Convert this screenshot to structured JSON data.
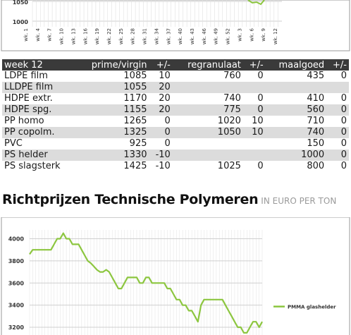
{
  "top_chart": {
    "type": "line",
    "y_tick_labels": [
      "1050",
      "1000"
    ],
    "x_tick_labels": [
      "wk. 1",
      "wk. 4",
      "wk. 7",
      "wk. 10",
      "wk. 13",
      "wk. 16",
      "wk. 19",
      "wk. 22",
      "wk. 25",
      "wk. 28",
      "wk. 31",
      "wk. 34",
      "wk. 37",
      "wk. 40",
      "wk. 43",
      "wk. 46",
      "wk. 49",
      "wk. 52",
      "wk. 3",
      "wk. 6",
      "wk. 9",
      "wk. 12"
    ],
    "series_color": "#8cc63f"
  },
  "table": {
    "headers": [
      "week 12",
      "prime/virgin",
      "+/-",
      "regranulaat",
      "+/-",
      "maalgoed",
      "+/-"
    ],
    "rows": [
      [
        "LDPE film",
        "1085",
        "10",
        "760",
        "0",
        "435",
        "0"
      ],
      [
        "LLDPE film",
        "1055",
        "20",
        "",
        "",
        "",
        ""
      ],
      [
        "HDPE extr.",
        "1170",
        "20",
        "740",
        "0",
        "410",
        "0"
      ],
      [
        "HDPE spg.",
        "1155",
        "20",
        "775",
        "0",
        "560",
        "0"
      ],
      [
        "PP homo",
        "1265",
        "0",
        "1020",
        "10",
        "710",
        "0"
      ],
      [
        "PP copolm.",
        "1325",
        "0",
        "1050",
        "10",
        "740",
        "0"
      ],
      [
        "PVC",
        "925",
        "0",
        "",
        "",
        "150",
        "0"
      ],
      [
        "PS helder",
        "1330",
        "-10",
        "",
        "",
        "1000",
        "0"
      ],
      [
        "PS slagsterk",
        "1425",
        "-10",
        "1025",
        "0",
        "800",
        "0"
      ]
    ]
  },
  "section": {
    "title": "Richtprijzen Technische Polymeren",
    "subtitle": "IN EURO PER TON"
  },
  "chart_data": {
    "type": "line",
    "y_tick_labels": [
      "4000",
      "3800",
      "3600",
      "3400",
      "3200"
    ],
    "ylim": [
      3130,
      4080
    ],
    "series": [
      {
        "name": "PMMA glashelder",
        "color": "#8cc63f",
        "values": [
          3860,
          3900,
          3900,
          3900,
          3900,
          3900,
          3900,
          3900,
          3950,
          4000,
          4000,
          4050,
          4000,
          4000,
          3950,
          3950,
          3950,
          3900,
          3850,
          3800,
          3780,
          3750,
          3720,
          3700,
          3700,
          3720,
          3700,
          3650,
          3600,
          3550,
          3550,
          3600,
          3650,
          3650,
          3650,
          3650,
          3600,
          3600,
          3650,
          3650,
          3600,
          3600,
          3600,
          3600,
          3600,
          3550,
          3550,
          3500,
          3450,
          3450,
          3400,
          3400,
          3350,
          3350,
          3300,
          3250,
          3400,
          3450,
          3450,
          3450,
          3450,
          3450,
          3450,
          3450,
          3400,
          3350,
          3300,
          3250,
          3200,
          3200,
          3150,
          3150,
          3200,
          3250,
          3250,
          3200,
          3250
        ]
      }
    ]
  }
}
